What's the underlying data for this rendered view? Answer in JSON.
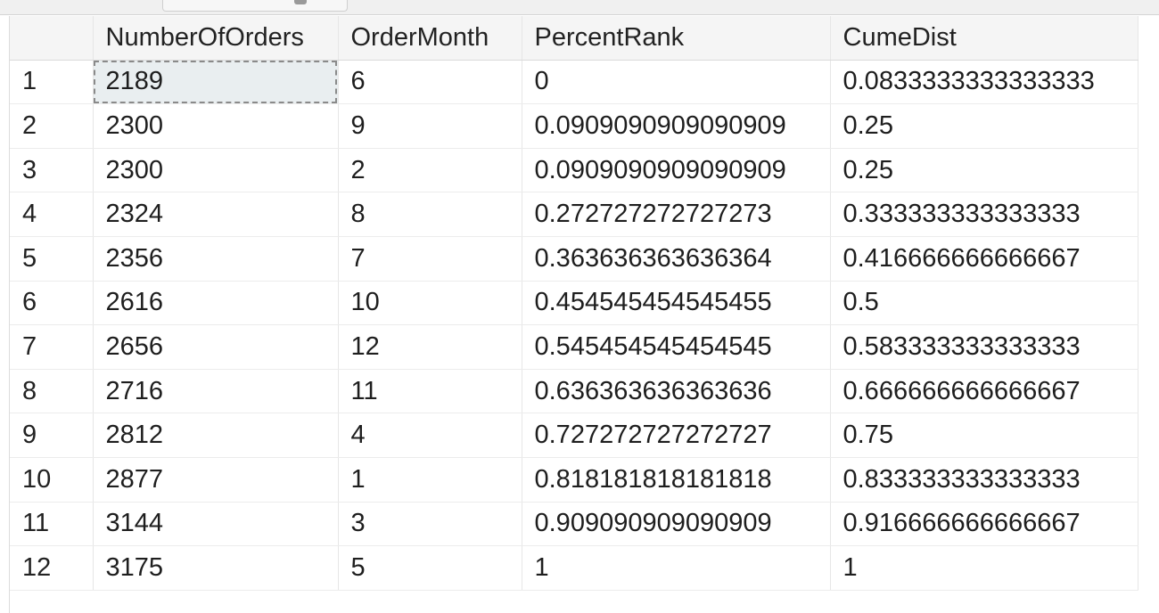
{
  "results_grid": {
    "columns": [
      "NumberOfOrders",
      "OrderMonth",
      "PercentRank",
      "CumeDist"
    ],
    "rows": [
      {
        "row_number": "1",
        "cells": [
          "2189",
          "6",
          "0",
          "0.0833333333333333"
        ]
      },
      {
        "row_number": "2",
        "cells": [
          "2300",
          "9",
          "0.0909090909090909",
          "0.25"
        ]
      },
      {
        "row_number": "3",
        "cells": [
          "2300",
          "2",
          "0.0909090909090909",
          "0.25"
        ]
      },
      {
        "row_number": "4",
        "cells": [
          "2324",
          "8",
          "0.272727272727273",
          "0.333333333333333"
        ]
      },
      {
        "row_number": "5",
        "cells": [
          "2356",
          "7",
          "0.363636363636364",
          "0.416666666666667"
        ]
      },
      {
        "row_number": "6",
        "cells": [
          "2616",
          "10",
          "0.454545454545455",
          "0.5"
        ]
      },
      {
        "row_number": "7",
        "cells": [
          "2656",
          "12",
          "0.545454545454545",
          "0.583333333333333"
        ]
      },
      {
        "row_number": "8",
        "cells": [
          "2716",
          "11",
          "0.636363636363636",
          "0.666666666666667"
        ]
      },
      {
        "row_number": "9",
        "cells": [
          "2812",
          "4",
          "0.727272727272727",
          "0.75"
        ]
      },
      {
        "row_number": "10",
        "cells": [
          "2877",
          "1",
          "0.818181818181818",
          "0.833333333333333"
        ]
      },
      {
        "row_number": "11",
        "cells": [
          "3144",
          "3",
          "0.909090909090909",
          "0.916666666666667"
        ]
      },
      {
        "row_number": "12",
        "cells": [
          "3175",
          "5",
          "1",
          "1"
        ]
      }
    ],
    "selected_cell": "row 1, NumberOfOrders"
  },
  "colors": {
    "header_background": "#f5f5f5",
    "selected_cell_background": "#e9eef0",
    "grid_line": "#e6e6e6"
  }
}
